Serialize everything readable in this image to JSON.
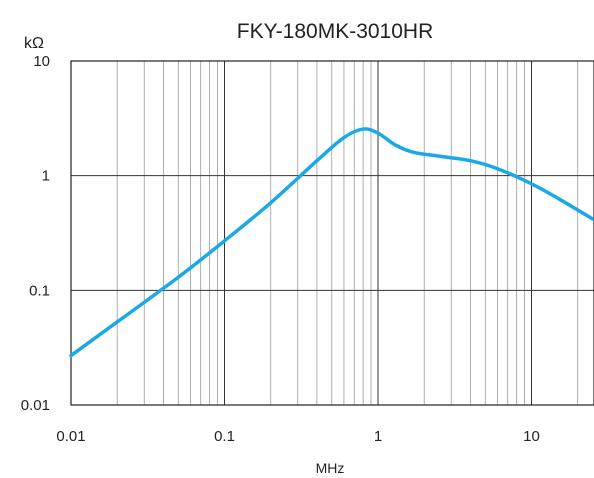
{
  "chart_data": {
    "type": "line",
    "title": "FKY-180MK-3010HR",
    "xlabel": "MHz",
    "ylabel": "kΩ",
    "xscale": "log",
    "yscale": "log",
    "xlim": [
      0.01,
      25
    ],
    "ylim": [
      0.01,
      10
    ],
    "grid": true,
    "x_ticks": [
      "0.01",
      "0.1",
      "1",
      "10"
    ],
    "y_ticks": [
      "0.01",
      "0.1",
      "1",
      "10"
    ],
    "series": [
      {
        "color": "#1aa9e6",
        "x": [
          0.01,
          0.02,
          0.05,
          0.1,
          0.2,
          0.4,
          0.6,
          0.8,
          1.0,
          1.3,
          1.7,
          2.5,
          4,
          6,
          10,
          15,
          25
        ],
        "y": [
          0.027,
          0.053,
          0.13,
          0.27,
          0.58,
          1.35,
          2.15,
          2.55,
          2.35,
          1.85,
          1.6,
          1.48,
          1.35,
          1.15,
          0.85,
          0.63,
          0.42
        ]
      }
    ]
  }
}
